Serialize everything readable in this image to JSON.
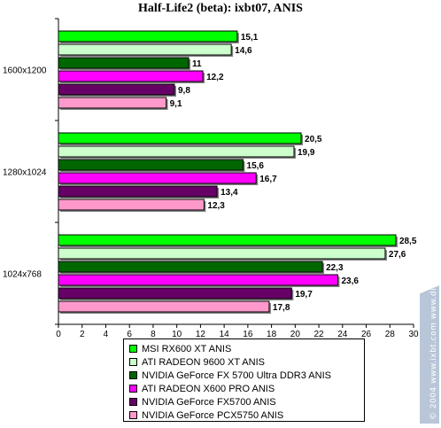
{
  "chart_data": {
    "type": "bar",
    "orientation": "horizontal",
    "title": "Half-Life2 (beta): ixbt07, ANIS",
    "categories": [
      "1600x1200",
      "1280x1024",
      "1024x768"
    ],
    "series": [
      {
        "name": "MSI  RX600 XT  ANIS",
        "color": "#00ff00",
        "values": [
          15.1,
          20.5,
          28.5
        ],
        "labels": [
          "15,1",
          "20,5",
          "28,5"
        ]
      },
      {
        "name": "ATI RADEON 9600 XT ANIS",
        "color": "#ccffcc",
        "values": [
          14.6,
          19.9,
          27.6
        ],
        "labels": [
          "14,6",
          "19,9",
          "27,6"
        ]
      },
      {
        "name": "NVIDIA GeForce FX 5700 Ultra DDR3 ANIS",
        "color": "#006600",
        "values": [
          11.0,
          15.6,
          22.3
        ],
        "labels": [
          "11",
          "15,6",
          "22,3"
        ]
      },
      {
        "name": "ATI RADEON X600 PRO ANIS",
        "color": "#ff00ff",
        "values": [
          12.2,
          16.7,
          23.6
        ],
        "labels": [
          "12,2",
          "16,7",
          "23,6"
        ]
      },
      {
        "name": "NVIDIA GeForce FX5700 ANIS",
        "color": "#660066",
        "values": [
          9.8,
          13.4,
          19.7
        ],
        "labels": [
          "9,8",
          "13,4",
          "19,7"
        ]
      },
      {
        "name": "NVIDIA GeForce PCX5750 ANIS",
        "color": "#ff99cc",
        "values": [
          9.1,
          12.3,
          17.8
        ],
        "labels": [
          "9,1",
          "12,3",
          "17,8"
        ]
      }
    ],
    "xlim": [
      0,
      30
    ],
    "xticks": [
      "0",
      "2",
      "4",
      "6",
      "8",
      "10",
      "12",
      "14",
      "16",
      "18",
      "20",
      "22",
      "24",
      "26",
      "28",
      "30"
    ],
    "grid": false,
    "legend_position": "bottom"
  },
  "watermark": "© 2004 www.ixbt.com  www.digit-life.com"
}
